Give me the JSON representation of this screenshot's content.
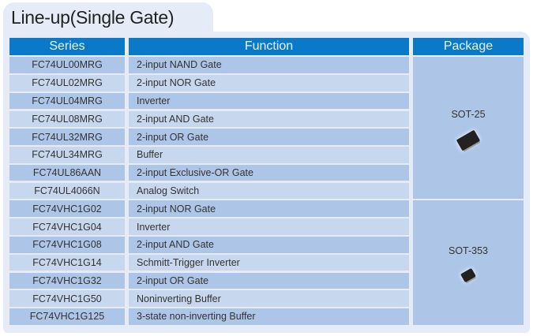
{
  "title": "Line-up(Single Gate)",
  "headers": {
    "series": "Series",
    "function": "Function",
    "package": "Package"
  },
  "rows": [
    {
      "series": "FC74UL00MRG",
      "function": "2-input NAND Gate"
    },
    {
      "series": "FC74UL02MRG",
      "function": "2-input NOR Gate"
    },
    {
      "series": "FC74UL04MRG",
      "function": "Inverter"
    },
    {
      "series": "FC74UL08MRG",
      "function": "2-input AND Gate"
    },
    {
      "series": "FC74UL32MRG",
      "function": "2-input OR Gate"
    },
    {
      "series": "FC74UL34MRG",
      "function": "Buffer"
    },
    {
      "series": "FC74UL86AAN",
      "function": "2-input Exclusive-OR Gate"
    },
    {
      "series": "FC74UL4066N",
      "function": "Analog Switch"
    },
    {
      "series": "FC74VHC1G02",
      "function": "2-input NOR Gate"
    },
    {
      "series": "FC74VHC1G04",
      "function": "Inverter"
    },
    {
      "series": "FC74VHC1G08",
      "function": "2-input AND Gate"
    },
    {
      "series": "FC74VHC1G14",
      "function": "Schmitt-Trigger Inverter"
    },
    {
      "series": "FC74VHC1G32",
      "function": "2-input OR Gate"
    },
    {
      "series": "FC74VHC1G50",
      "function": "Noninverting Buffer"
    },
    {
      "series": "FC74VHC1G125",
      "function": "3-state non-inverting Buffer"
    }
  ],
  "packages": [
    {
      "label": "SOT-25",
      "icon": "ic-chip-icon"
    },
    {
      "label": "SOT-353",
      "icon": "ic-chip-icon"
    }
  ],
  "colors": {
    "header": "#0a7ac8",
    "row_dark": "#adc6e7",
    "row_light": "#c7d7ee",
    "panel": "#e5ecf7"
  }
}
